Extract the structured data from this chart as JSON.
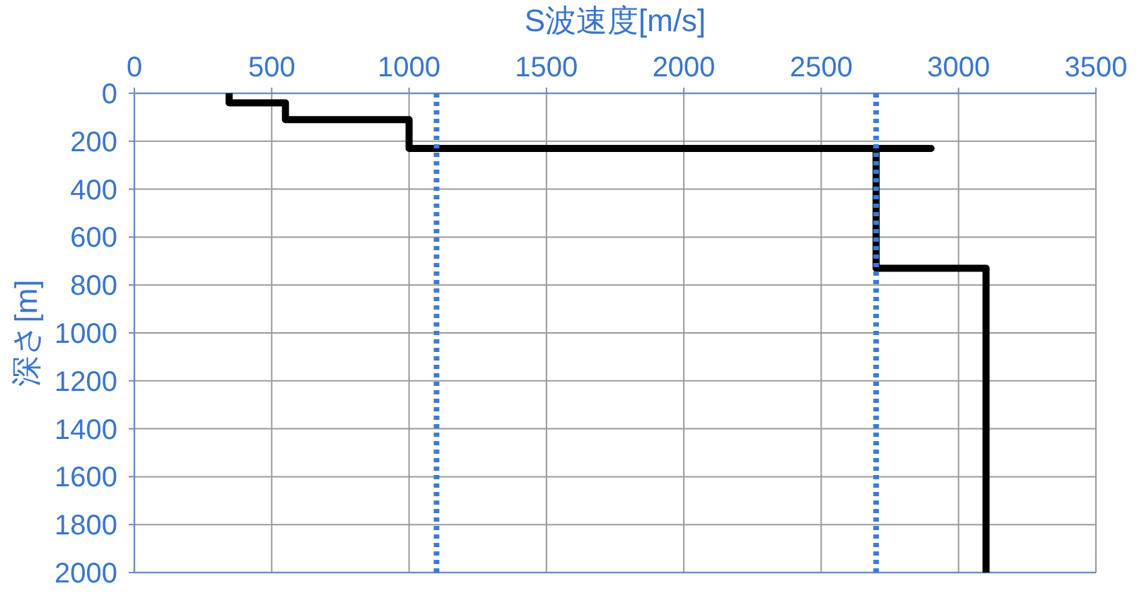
{
  "chart_data": {
    "type": "line",
    "xlabel": "S波速度[m/s]",
    "ylabel": "深さ[m]",
    "xlim": [
      0,
      3500
    ],
    "xticks": [
      0,
      500,
      1000,
      1500,
      2000,
      2500,
      3000,
      3500
    ],
    "ylim": [
      2000,
      0
    ],
    "yticks": [
      0,
      200,
      400,
      600,
      800,
      1000,
      1200,
      1400,
      1600,
      1800,
      2000
    ],
    "grid": true,
    "line_style": "solid",
    "series": [
      {
        "color": "#000000",
        "x": [
          345,
          345,
          550,
          550,
          1000,
          1000,
          2900,
          2700,
          2700,
          3100,
          3100
        ],
        "values": [
          0,
          40,
          40,
          110,
          110,
          230,
          230,
          230,
          730,
          730,
          2000
        ]
      }
    ],
    "ref_lines": [
      {
        "axis": "x",
        "value": 1100,
        "color": "#3a7bd8",
        "line_style": "dotted"
      },
      {
        "axis": "x",
        "value": 2700,
        "color": "#3a7bd8",
        "line_style": "dotted"
      }
    ]
  }
}
